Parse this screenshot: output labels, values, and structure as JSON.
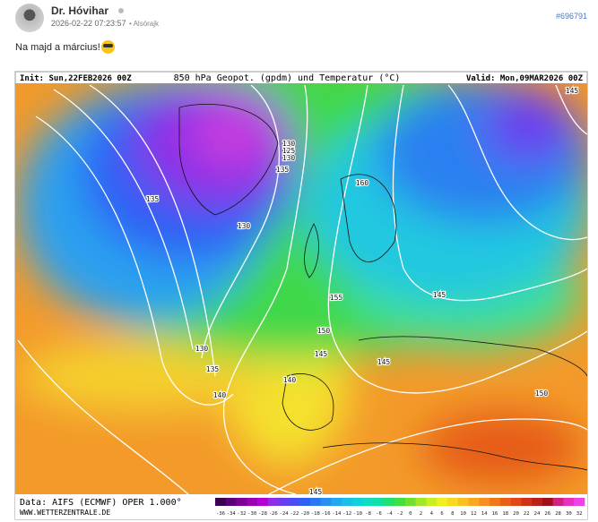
{
  "post": {
    "author": "Dr. Hóvihar",
    "timestamp": "2026-02-22 07:23:57",
    "location": "• Alsórajk",
    "post_id": "#696791",
    "text": "Na majd a március!"
  },
  "map": {
    "init": "Init: Sun,22FEB2026 00Z",
    "title": "850 hPa Geopot. (gpdm) und Temperatur (°C)",
    "valid": "Valid: Mon,09MAR2026 00Z",
    "source": "Data: AIFS (ECMWF) OPER 1.000°",
    "website": "WWW.WETTERZENTRALE.DE",
    "contour_labels": [
      135,
      130,
      125,
      130,
      135,
      160,
      130,
      130,
      135,
      140,
      140,
      145,
      150,
      155,
      145,
      145,
      150,
      145,
      145
    ],
    "legend": {
      "labels": [
        -36,
        -34,
        -32,
        -30,
        -28,
        -26,
        -24,
        -22,
        -20,
        -18,
        -16,
        -14,
        -12,
        -10,
        -8,
        -6,
        -4,
        -2,
        0,
        2,
        4,
        6,
        8,
        10,
        12,
        14,
        16,
        18,
        20,
        22,
        24,
        26,
        28,
        30,
        32
      ],
      "colors": [
        "#3b0050",
        "#5a0078",
        "#7a0096",
        "#9b00b4",
        "#b400d2",
        "#8c2ee6",
        "#6a3cf0",
        "#4a4cf5",
        "#2f5ff5",
        "#2a78f0",
        "#2a90f0",
        "#20a8f0",
        "#18c0e8",
        "#10d0d8",
        "#10dcc0",
        "#10e0a0",
        "#20e070",
        "#40e040",
        "#70e030",
        "#a0e828",
        "#c8f020",
        "#f0f020",
        "#f8d820",
        "#f8c020",
        "#f8a820",
        "#f89020",
        "#f07818",
        "#e86018",
        "#e04818",
        "#d03018",
        "#b82018",
        "#a01018",
        "#d02080",
        "#e830c0",
        "#f040e8"
      ]
    }
  }
}
